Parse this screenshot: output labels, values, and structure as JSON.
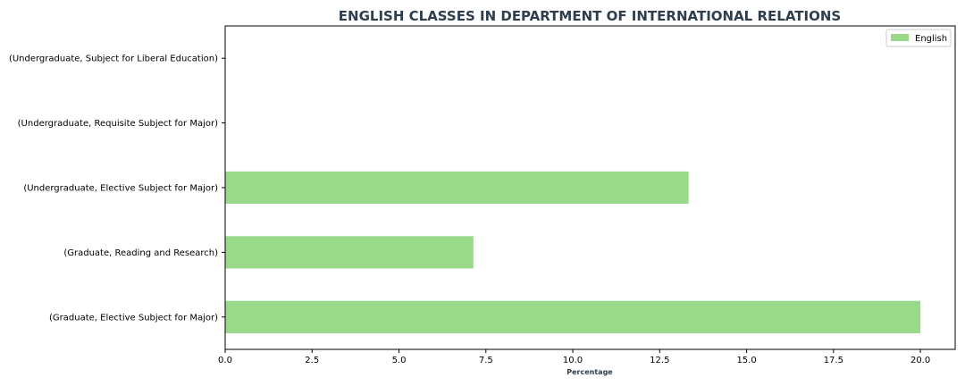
{
  "chart_data": {
    "type": "bar",
    "orientation": "horizontal",
    "title": "ENGLISH CLASSES IN DEPARTMENT OF INTERNATIONAL RELATIONS",
    "xlabel": "Percentage",
    "ylabel": "",
    "xlim": [
      0,
      21
    ],
    "x_ticks": [
      "0.0",
      "2.5",
      "5.0",
      "7.5",
      "10.0",
      "12.5",
      "15.0",
      "17.5",
      "20.0"
    ],
    "categories": [
      "(Graduate, Elective Subject for Major)",
      "(Graduate, Reading and Research)",
      "(Undergraduate, Elective Subject for Major)",
      "(Undergraduate, Requisite Subject for Major)",
      "(Undergraduate, Subject for Liberal Education)"
    ],
    "series": [
      {
        "name": "English",
        "values": [
          20.0,
          7.14,
          13.33,
          0,
          0
        ]
      }
    ],
    "legend": "top-right",
    "grid": false,
    "colors": {
      "bar": "#98d98a",
      "title": "#2f3e4e",
      "xlabel": "#2f3e4e",
      "axis": "#000000"
    }
  }
}
